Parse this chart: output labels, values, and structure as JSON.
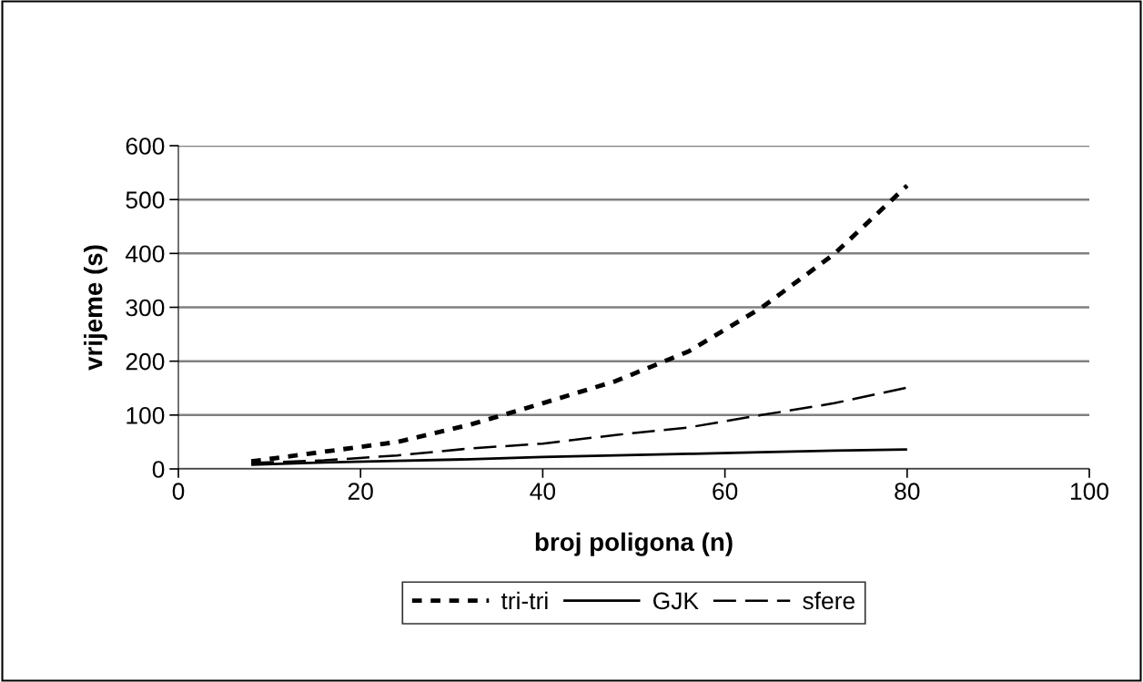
{
  "chart_data": {
    "type": "line",
    "xlabel": "broj poligona (n)",
    "ylabel": "vrijeme (s)",
    "xlim": [
      0,
      100
    ],
    "xticks": [
      0,
      20,
      40,
      60,
      80,
      100
    ],
    "ylim": [
      0,
      600
    ],
    "yticks": [
      0,
      100,
      200,
      300,
      400,
      500,
      600
    ],
    "grid": "y",
    "legend": "bottom",
    "marker": "none",
    "x": [
      8,
      16,
      24,
      32,
      40,
      48,
      56,
      64,
      72,
      80
    ],
    "series": [
      {
        "name": "tri-tri",
        "color": "#000000",
        "line_style": "dotted",
        "values": [
          14,
          32,
          50,
          82,
          122,
          163,
          218,
          299,
          399,
          526
        ]
      },
      {
        "name": "GJK",
        "color": "#000000",
        "line_style": "solid",
        "values": [
          8,
          12,
          15,
          18,
          22,
          25,
          28,
          31,
          34,
          36
        ]
      },
      {
        "name": "sfere",
        "color": "#000000",
        "line_style": "dashed",
        "values": [
          11,
          16,
          25,
          38,
          47,
          63,
          77,
          100,
          122,
          151
        ]
      }
    ]
  }
}
